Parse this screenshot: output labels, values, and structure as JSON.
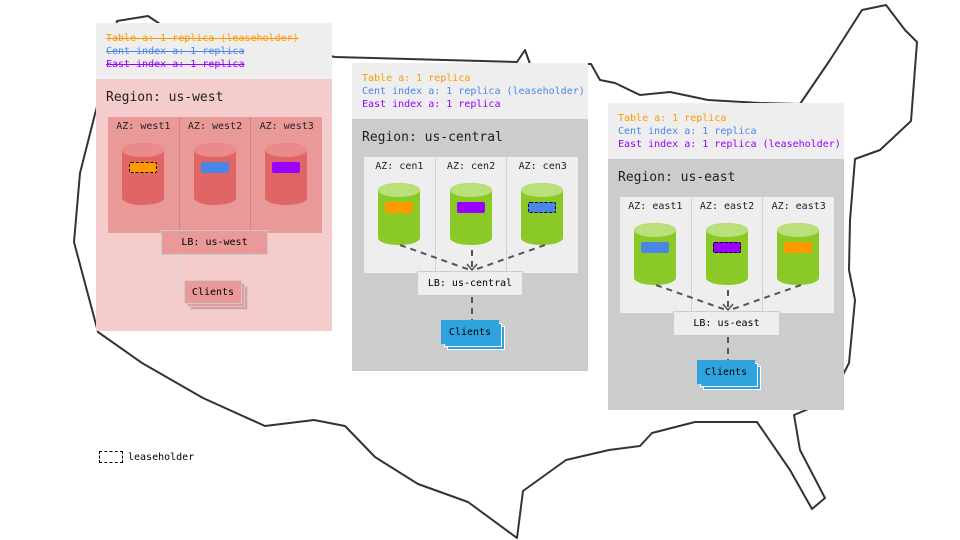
{
  "colors": {
    "table": "#ff9900",
    "cent": "#4a86e8",
    "east": "#9900ff",
    "west_body": "#f4cccc",
    "west_az": "#ea9999",
    "west_cyl": "#e06666",
    "green_cyl": "#8bc926",
    "client_blue": "#2ea3dd",
    "gray_body": "#cccccc"
  },
  "regions": {
    "west": {
      "lines": [
        "Table a: 1 replica (leaseholder)",
        "Cent index a: 1 replica",
        "East index a: 1 replica"
      ],
      "struck": true,
      "label": "Region: us-west",
      "azs": [
        "AZ: west1",
        "AZ: west2",
        "AZ: west3"
      ],
      "replicas": [
        "table",
        "cent",
        "east"
      ],
      "leaseholder_az": 0,
      "lb": "LB: us-west",
      "clients": "Clients"
    },
    "central": {
      "lines": [
        "Table a: 1 replica",
        "Cent index a: 1 replica (leaseholder)",
        "East index a: 1 replica"
      ],
      "struck": false,
      "label": "Region: us-central",
      "azs": [
        "AZ: cen1",
        "AZ: cen2",
        "AZ: cen3"
      ],
      "replicas": [
        "table",
        "east",
        "cent"
      ],
      "leaseholder_az": 2,
      "lb": "LB: us-central",
      "clients": "Clients"
    },
    "east": {
      "lines": [
        "Table a: 1 replica",
        "Cent index a: 1 replica",
        "East index a: 1 replica (leaseholder)"
      ],
      "struck": false,
      "label": "Region: us-east",
      "azs": [
        "AZ: east1",
        "AZ: east2",
        "AZ: east3"
      ],
      "replicas": [
        "cent",
        "east",
        "table"
      ],
      "leaseholder_az": 1,
      "lb": "LB: us-east",
      "clients": "Clients"
    }
  },
  "legend": {
    "label": "leaseholder"
  }
}
